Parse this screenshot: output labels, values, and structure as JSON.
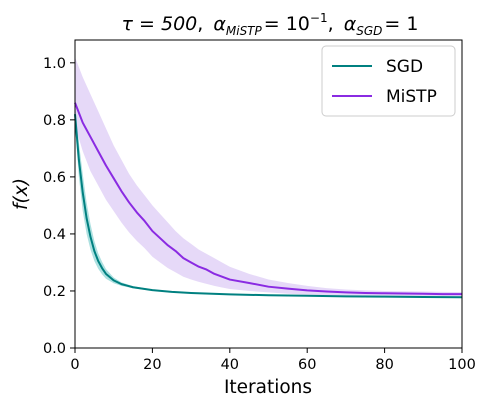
{
  "chart_data": {
    "type": "line",
    "title": {
      "tau": "τ = 500",
      "alpha_mistp_label": "α",
      "alpha_mistp_sub": "MiSTP",
      "alpha_mistp_value": "= 10",
      "alpha_mistp_exp": "−1",
      "alpha_sgd_label": "α",
      "alpha_sgd_sub": "SGD",
      "alpha_sgd_value": "= 1",
      "sep": ","
    },
    "xlabel": "Iterations",
    "ylabel": "f(x)",
    "xlim": [
      0,
      100
    ],
    "ylim": [
      0.0,
      1.08
    ],
    "xticks": [
      0,
      20,
      40,
      60,
      80,
      100
    ],
    "xtick_labels": [
      "0",
      "20",
      "40",
      "60",
      "80",
      "100"
    ],
    "yticks": [
      0.0,
      0.2,
      0.4,
      0.6,
      0.8,
      1.0
    ],
    "ytick_labels": [
      "0.0",
      "0.2",
      "0.4",
      "0.6",
      "0.8",
      "1.0"
    ],
    "grid": false,
    "legend_position": "top-right",
    "series": [
      {
        "name": "SGD",
        "color": "#008080",
        "band_color": "#7fcfcf",
        "x": [
          0,
          1,
          2,
          3,
          4,
          5,
          6,
          7,
          8,
          10,
          12,
          15,
          20,
          25,
          30,
          40,
          50,
          60,
          70,
          80,
          90,
          100
        ],
        "mean": [
          0.82,
          0.66,
          0.545,
          0.455,
          0.39,
          0.34,
          0.305,
          0.28,
          0.26,
          0.237,
          0.224,
          0.213,
          0.203,
          0.197,
          0.193,
          0.188,
          0.185,
          0.183,
          0.181,
          0.18,
          0.179,
          0.178
        ],
        "lower": [
          0.78,
          0.6,
          0.48,
          0.4,
          0.345,
          0.305,
          0.278,
          0.258,
          0.243,
          0.227,
          0.218,
          0.209,
          0.201,
          0.196,
          0.192,
          0.187,
          0.184,
          0.182,
          0.18,
          0.179,
          0.178,
          0.177
        ],
        "upper": [
          0.86,
          0.72,
          0.61,
          0.51,
          0.435,
          0.375,
          0.332,
          0.302,
          0.277,
          0.247,
          0.23,
          0.217,
          0.205,
          0.198,
          0.194,
          0.189,
          0.186,
          0.184,
          0.182,
          0.181,
          0.18,
          0.179
        ]
      },
      {
        "name": "MiSTP",
        "color": "#8a2be2",
        "band_color": "#d9c4f5",
        "x": [
          0,
          2,
          4,
          6,
          8,
          10,
          12,
          14,
          16,
          18,
          20,
          22,
          24,
          26,
          28,
          30,
          32,
          34,
          36,
          38,
          40,
          45,
          50,
          55,
          60,
          65,
          70,
          75,
          80,
          85,
          90,
          95,
          100
        ],
        "mean": [
          0.86,
          0.79,
          0.74,
          0.69,
          0.64,
          0.595,
          0.55,
          0.51,
          0.475,
          0.445,
          0.41,
          0.385,
          0.36,
          0.34,
          0.315,
          0.3,
          0.285,
          0.275,
          0.26,
          0.25,
          0.24,
          0.228,
          0.215,
          0.208,
          0.202,
          0.198,
          0.195,
          0.193,
          0.192,
          0.191,
          0.19,
          0.189,
          0.189
        ],
        "lower": [
          0.78,
          0.69,
          0.62,
          0.57,
          0.52,
          0.48,
          0.44,
          0.405,
          0.375,
          0.35,
          0.32,
          0.3,
          0.28,
          0.265,
          0.25,
          0.24,
          0.232,
          0.225,
          0.218,
          0.212,
          0.207,
          0.2,
          0.195,
          0.19,
          0.187,
          0.185,
          0.184,
          0.183,
          0.183,
          0.182,
          0.182,
          0.182,
          0.182
        ],
        "upper": [
          1.02,
          0.95,
          0.89,
          0.83,
          0.77,
          0.71,
          0.66,
          0.61,
          0.57,
          0.535,
          0.5,
          0.47,
          0.44,
          0.41,
          0.385,
          0.365,
          0.345,
          0.33,
          0.315,
          0.3,
          0.285,
          0.26,
          0.24,
          0.228,
          0.218,
          0.21,
          0.205,
          0.202,
          0.2,
          0.199,
          0.198,
          0.197,
          0.196
        ]
      }
    ]
  }
}
